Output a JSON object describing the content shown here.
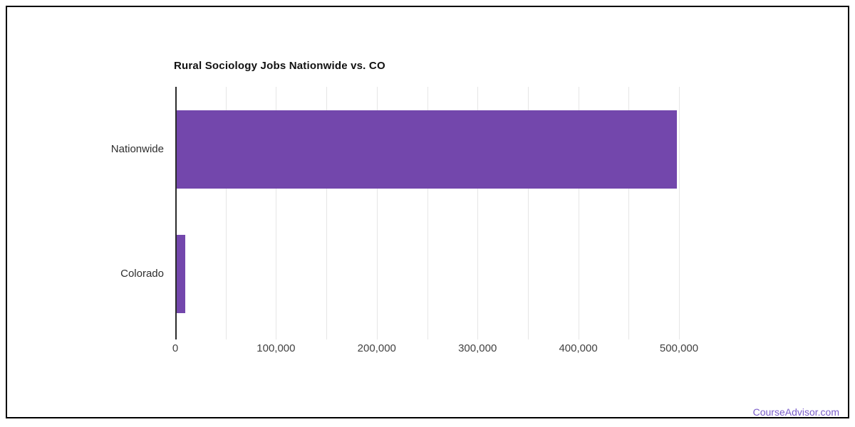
{
  "footer": {
    "link_text": "CourseAdvisor.com"
  },
  "colors": {
    "bar": "#7347ac",
    "link": "#7a5cc9",
    "grid": "#e6e6e6",
    "axis": "#2b2b2b",
    "tick_text": "#424242",
    "title_text": "#111111",
    "frame": "#000000"
  },
  "chart_data": {
    "type": "bar",
    "orientation": "horizontal",
    "title": "Rural Sociology Jobs Nationwide vs. CO",
    "categories": [
      "Nationwide",
      "Colorado"
    ],
    "values": [
      497000,
      9000
    ],
    "xlabel": "",
    "ylabel": "",
    "xlim": [
      0,
      500000
    ],
    "grid_interval": 50000,
    "tick_interval": 100000,
    "tick_labels": [
      "0",
      "100,000",
      "200,000",
      "300,000",
      "400,000",
      "500,000"
    ],
    "grid": true,
    "legend": false,
    "bar_color": "#7347ac"
  }
}
